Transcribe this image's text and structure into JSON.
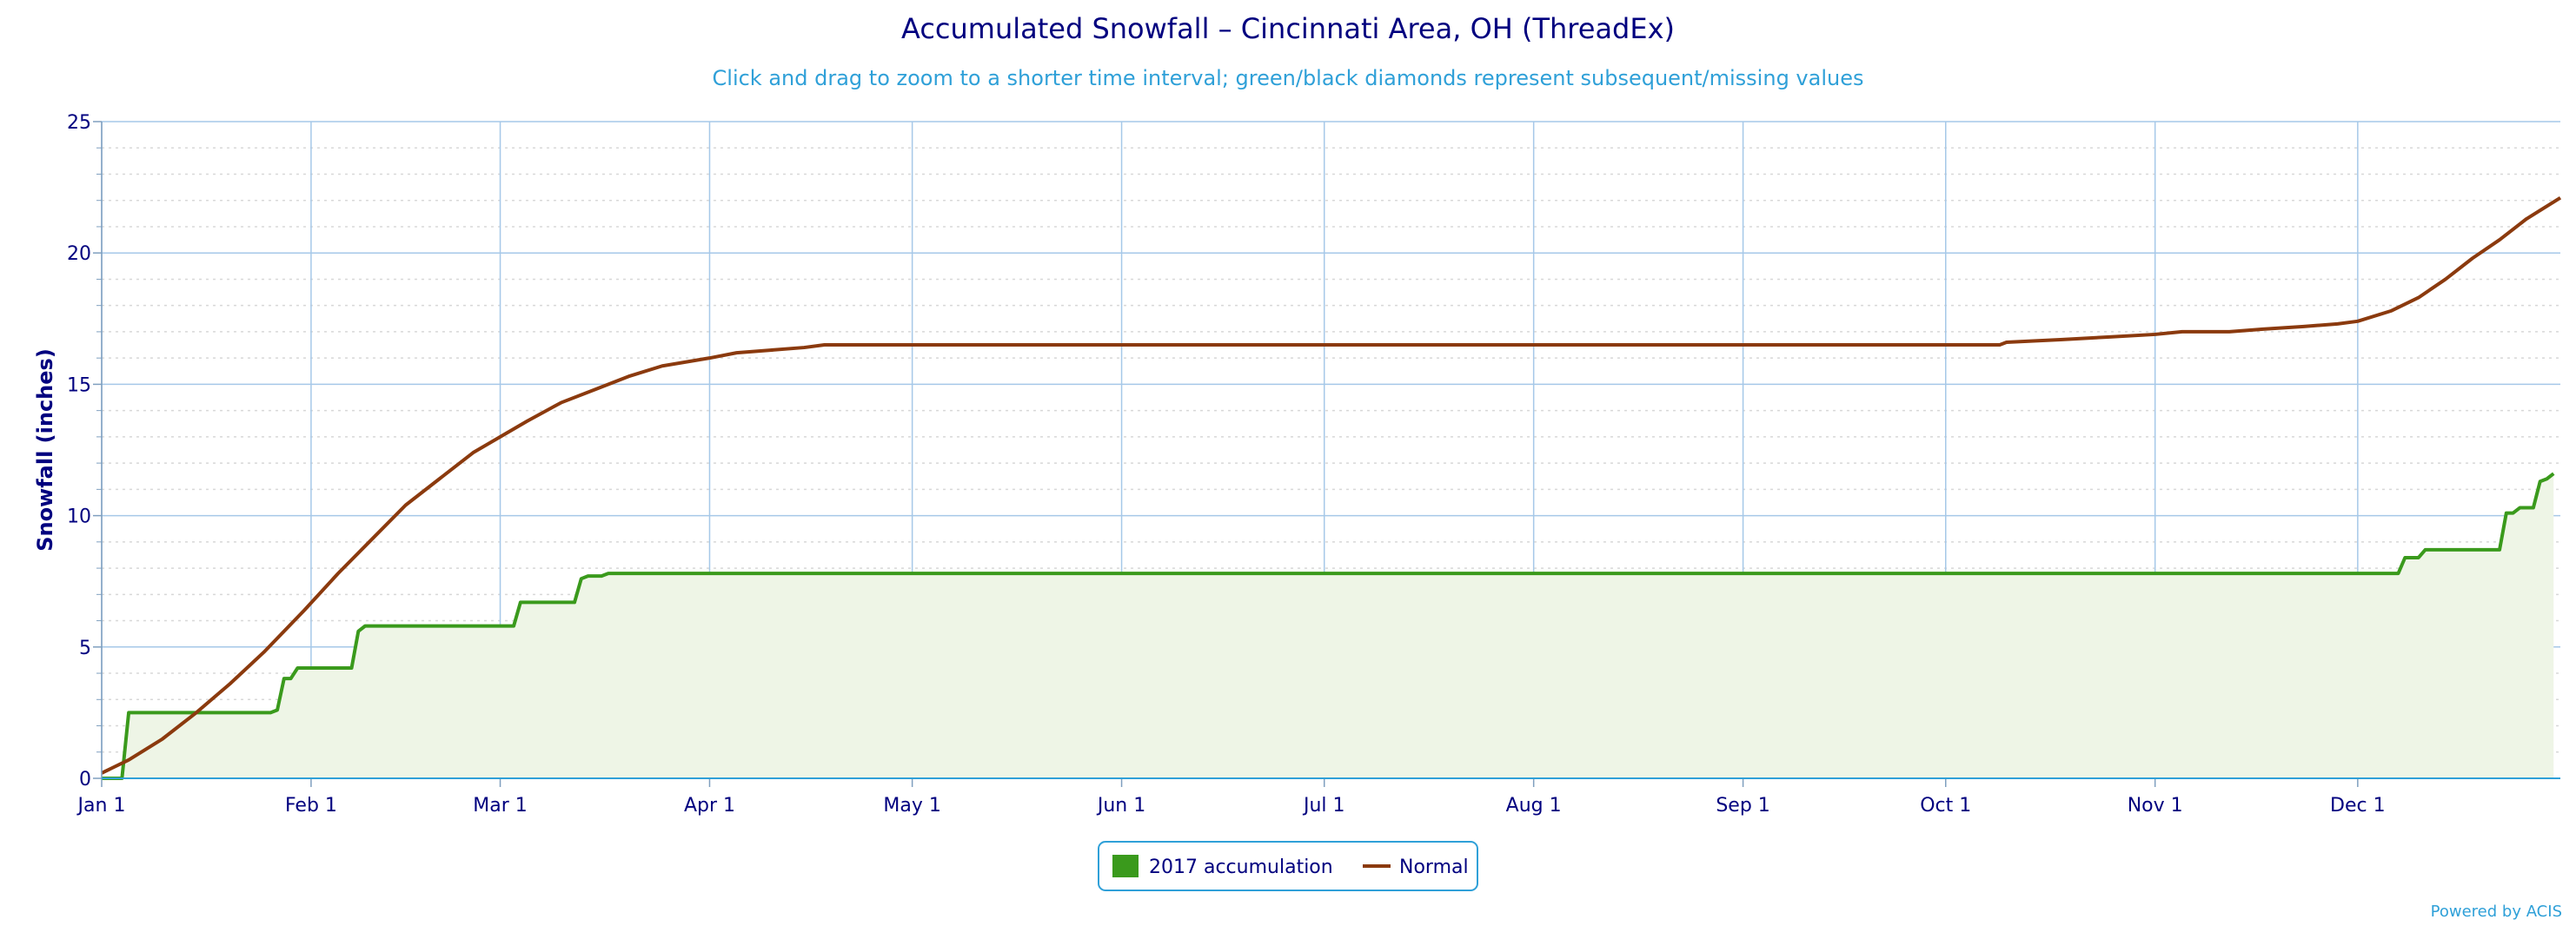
{
  "chart_data": {
    "type": "line",
    "title": "Accumulated Snowfall – Cincinnati Area, OH (ThreadEx)",
    "subtitle": "Click and drag to zoom to a shorter time interval; green/black diamonds represent subsequent/missing values",
    "ylabel": "Snowfall (inches)",
    "xlabel": "",
    "ylim": [
      0,
      25
    ],
    "yticks": [
      0,
      5,
      10,
      15,
      20,
      25
    ],
    "xlim": [
      "2017-01-01",
      "2017-12-31"
    ],
    "xticks": [
      {
        "date": "2017-01-01",
        "label": "Jan 1"
      },
      {
        "date": "2017-02-01",
        "label": "Feb 1"
      },
      {
        "date": "2017-03-01",
        "label": "Mar 1"
      },
      {
        "date": "2017-04-01",
        "label": "Apr 1"
      },
      {
        "date": "2017-05-01",
        "label": "May 1"
      },
      {
        "date": "2017-06-01",
        "label": "Jun 1"
      },
      {
        "date": "2017-07-01",
        "label": "Jul 1"
      },
      {
        "date": "2017-08-01",
        "label": "Aug 1"
      },
      {
        "date": "2017-09-01",
        "label": "Sep 1"
      },
      {
        "date": "2017-10-01",
        "label": "Oct 1"
      },
      {
        "date": "2017-11-01",
        "label": "Nov 1"
      },
      {
        "date": "2017-12-01",
        "label": "Dec 1"
      }
    ],
    "grid": true,
    "legend_position": "bottom-center",
    "series": [
      {
        "name": "2017 accumulation",
        "color": "#3a9a1c",
        "fill": "#eef5e6",
        "style": "step-area",
        "points": [
          [
            "2017-01-01",
            0
          ],
          [
            "2017-01-04",
            0
          ],
          [
            "2017-01-05",
            2.5
          ],
          [
            "2017-01-26",
            2.5
          ],
          [
            "2017-01-27",
            2.6
          ],
          [
            "2017-01-28",
            3.8
          ],
          [
            "2017-01-29",
            3.8
          ],
          [
            "2017-01-30",
            4.2
          ],
          [
            "2017-02-07",
            4.2
          ],
          [
            "2017-02-08",
            5.6
          ],
          [
            "2017-02-09",
            5.8
          ],
          [
            "2017-03-03",
            5.8
          ],
          [
            "2017-03-04",
            6.7
          ],
          [
            "2017-03-12",
            6.7
          ],
          [
            "2017-03-13",
            7.6
          ],
          [
            "2017-03-14",
            7.7
          ],
          [
            "2017-03-16",
            7.7
          ],
          [
            "2017-03-17",
            7.8
          ],
          [
            "2017-12-07",
            7.8
          ],
          [
            "2017-12-08",
            8.4
          ],
          [
            "2017-12-10",
            8.4
          ],
          [
            "2017-12-11",
            8.7
          ],
          [
            "2017-12-22",
            8.7
          ],
          [
            "2017-12-23",
            10.1
          ],
          [
            "2017-12-24",
            10.1
          ],
          [
            "2017-12-25",
            10.3
          ],
          [
            "2017-12-27",
            10.3
          ],
          [
            "2017-12-28",
            11.3
          ],
          [
            "2017-12-29",
            11.4
          ],
          [
            "2017-12-30",
            11.6
          ]
        ]
      },
      {
        "name": "Normal",
        "color": "#8b3a0e",
        "style": "line",
        "points": [
          [
            "2017-01-01",
            0.2
          ],
          [
            "2017-01-05",
            0.7
          ],
          [
            "2017-01-10",
            1.5
          ],
          [
            "2017-01-15",
            2.5
          ],
          [
            "2017-01-20",
            3.6
          ],
          [
            "2017-01-25",
            4.8
          ],
          [
            "2017-01-31",
            6.4
          ],
          [
            "2017-02-05",
            7.8
          ],
          [
            "2017-02-10",
            9.1
          ],
          [
            "2017-02-15",
            10.4
          ],
          [
            "2017-02-20",
            11.4
          ],
          [
            "2017-02-25",
            12.4
          ],
          [
            "2017-03-01",
            13.0
          ],
          [
            "2017-03-05",
            13.6
          ],
          [
            "2017-03-10",
            14.3
          ],
          [
            "2017-03-15",
            14.8
          ],
          [
            "2017-03-20",
            15.3
          ],
          [
            "2017-03-25",
            15.7
          ],
          [
            "2017-04-01",
            16.0
          ],
          [
            "2017-04-05",
            16.2
          ],
          [
            "2017-04-10",
            16.3
          ],
          [
            "2017-04-15",
            16.4
          ],
          [
            "2017-04-18",
            16.5
          ],
          [
            "2017-10-09",
            16.5
          ],
          [
            "2017-10-10",
            16.6
          ],
          [
            "2017-10-18",
            16.7
          ],
          [
            "2017-10-25",
            16.8
          ],
          [
            "2017-11-01",
            16.9
          ],
          [
            "2017-11-05",
            17.0
          ],
          [
            "2017-11-12",
            17.0
          ],
          [
            "2017-11-17",
            17.1
          ],
          [
            "2017-11-23",
            17.2
          ],
          [
            "2017-11-28",
            17.3
          ],
          [
            "2017-12-01",
            17.4
          ],
          [
            "2017-12-06",
            17.8
          ],
          [
            "2017-12-10",
            18.3
          ],
          [
            "2017-12-14",
            19.0
          ],
          [
            "2017-12-18",
            19.8
          ],
          [
            "2017-12-22",
            20.5
          ],
          [
            "2017-12-26",
            21.3
          ],
          [
            "2017-12-31",
            22.1
          ]
        ]
      }
    ]
  },
  "credit": "Powered by ACIS"
}
